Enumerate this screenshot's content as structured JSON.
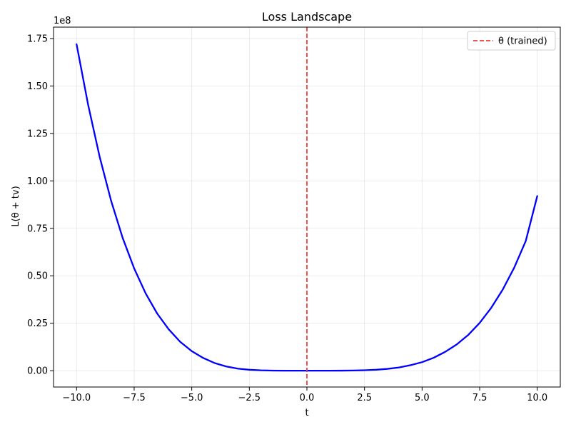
{
  "chart_data": {
    "type": "line",
    "title": "Loss Landscape",
    "xlabel": "t",
    "ylabel": "L(θ + tv)",
    "y_offset_label": "1e8",
    "xlim": [
      -11.0,
      11.0
    ],
    "ylim": [
      -0.086,
      1.81
    ],
    "y_scale_note": "y values in units of 1e8",
    "xticks": [
      -10.0,
      -7.5,
      -5.0,
      -2.5,
      0.0,
      2.5,
      5.0,
      7.5,
      10.0
    ],
    "xtick_labels": [
      "−10.0",
      "−7.5",
      "−5.0",
      "−2.5",
      "0.0",
      "2.5",
      "5.0",
      "7.5",
      "10.0"
    ],
    "yticks": [
      0.0,
      0.25,
      0.5,
      0.75,
      1.0,
      1.25,
      1.5,
      1.75
    ],
    "ytick_labels": [
      "0.00",
      "0.25",
      "0.50",
      "0.75",
      "1.00",
      "1.25",
      "1.50",
      "1.75"
    ],
    "grid": true,
    "legend_position": "upper-right",
    "series": [
      {
        "name": "",
        "color": "#0000ff",
        "x": [
          -10.0,
          -9.5,
          -9.0,
          -8.5,
          -8.0,
          -7.5,
          -7.0,
          -6.5,
          -6.0,
          -5.5,
          -5.0,
          -4.5,
          -4.0,
          -3.5,
          -3.0,
          -2.5,
          -2.0,
          -1.5,
          -1.0,
          -0.5,
          0.0,
          0.5,
          1.0,
          1.5,
          2.0,
          2.5,
          3.0,
          3.5,
          4.0,
          4.5,
          5.0,
          5.5,
          6.0,
          6.5,
          7.0,
          7.5,
          8.0,
          8.5,
          9.0,
          9.5,
          10.0
        ],
        "y": [
          1.72,
          1.402,
          1.128,
          0.895,
          0.7,
          0.539,
          0.407,
          0.301,
          0.218,
          0.152,
          0.103,
          0.067,
          0.04,
          0.022,
          0.011,
          0.005,
          0.002,
          0.0005,
          0.0001,
          0.0,
          0.0,
          0.0,
          0.0001,
          0.0003,
          0.0009,
          0.0023,
          0.005,
          0.0097,
          0.017,
          0.029,
          0.045,
          0.068,
          0.099,
          0.138,
          0.188,
          0.252,
          0.331,
          0.427,
          0.543,
          0.683,
          0.92
        ]
      }
    ],
    "vlines": [
      {
        "x": 0.0,
        "label": "θ (trained)",
        "color": "#e8413e",
        "style": "dashed"
      }
    ]
  }
}
